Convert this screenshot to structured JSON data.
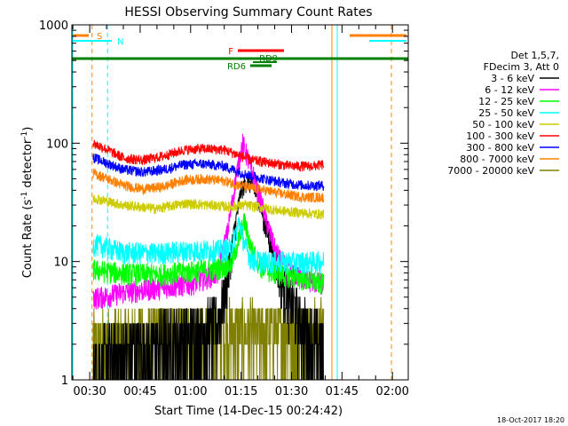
{
  "chart_data": {
    "type": "line",
    "title": "HESSI Observing Summary Count Rates",
    "xlabel": "Start Time (14-Dec-15 00:24:42)",
    "ylabel_main": "Count Rate (s",
    "ylabel_sup1": "-1",
    "ylabel_mid": " detector",
    "ylabel_sup2": "-1",
    "ylabel_end": ")",
    "y_scale": "log",
    "ylim": [
      1,
      1000
    ],
    "xlim_minutes": [
      24.7,
      124.7
    ],
    "x_ticks": [
      {
        "m": 30,
        "label": "00:30"
      },
      {
        "m": 45,
        "label": "00:45"
      },
      {
        "m": 60,
        "label": "01:00"
      },
      {
        "m": 75,
        "label": "01:15"
      },
      {
        "m": 90,
        "label": "01:30"
      },
      {
        "m": 105,
        "label": "01:45"
      },
      {
        "m": 120,
        "label": "02:00"
      }
    ],
    "y_ticks": [
      {
        "v": 1,
        "label": "1"
      },
      {
        "v": 10,
        "label": "10"
      },
      {
        "v": 100,
        "label": "100"
      },
      {
        "v": 1000,
        "label": "1000"
      }
    ],
    "legend_header": [
      "Det 1,5,7,",
      "FDecim 3, Att 0"
    ],
    "series": [
      {
        "name": "3 - 6 keV",
        "color": "#000000",
        "points": [
          [
            31,
            1.2
          ],
          [
            40,
            1.6
          ],
          [
            50,
            2.0
          ],
          [
            60,
            2.4
          ],
          [
            68,
            3.0
          ],
          [
            71,
            7
          ],
          [
            73,
            18
          ],
          [
            75,
            40
          ],
          [
            77,
            48
          ],
          [
            79,
            40
          ],
          [
            81,
            28
          ],
          [
            83,
            17
          ],
          [
            85,
            11
          ],
          [
            87,
            7
          ],
          [
            89,
            5
          ],
          [
            92,
            3.5
          ],
          [
            96,
            2.2
          ],
          [
            99.5,
            1.8
          ]
        ]
      },
      {
        "name": "6 - 12 keV",
        "color": "#ff00ff",
        "points": [
          [
            33,
            5
          ],
          [
            40,
            5.5
          ],
          [
            50,
            6
          ],
          [
            60,
            6.5
          ],
          [
            68,
            8
          ],
          [
            71,
            18
          ],
          [
            73,
            42
          ],
          [
            74.5,
            75
          ],
          [
            75.5,
            100
          ],
          [
            77,
            75
          ],
          [
            79,
            50
          ],
          [
            81,
            32
          ],
          [
            83,
            20
          ],
          [
            85,
            13
          ],
          [
            87,
            10
          ],
          [
            90,
            8
          ],
          [
            95,
            7
          ],
          [
            99.5,
            6.5
          ]
        ]
      },
      {
        "name": "12 - 25 keV",
        "color": "#00ff00",
        "points": [
          [
            32,
            8.5
          ],
          [
            40,
            8.0
          ],
          [
            50,
            7.8
          ],
          [
            60,
            8.3
          ],
          [
            68,
            8.8
          ],
          [
            72,
            9.5
          ],
          [
            74.5,
            16
          ],
          [
            76,
            22
          ],
          [
            78,
            13
          ],
          [
            81,
            9
          ],
          [
            85,
            8
          ],
          [
            90,
            7.5
          ],
          [
            95,
            7
          ],
          [
            99.5,
            6.5
          ]
        ]
      },
      {
        "name": "25 - 50 keV",
        "color": "#00ffff",
        "points": [
          [
            32,
            14
          ],
          [
            40,
            12
          ],
          [
            50,
            11.8
          ],
          [
            60,
            12.5
          ],
          [
            68,
            12.5
          ],
          [
            72,
            13
          ],
          [
            74.5,
            22
          ],
          [
            76,
            14
          ],
          [
            78,
            10.5
          ],
          [
            82,
            10
          ],
          [
            88,
            10
          ],
          [
            95,
            10
          ],
          [
            99.5,
            10
          ]
        ]
      },
      {
        "name": "50 - 100 keV",
        "color": "#cccc00",
        "points": [
          [
            32,
            34
          ],
          [
            40,
            30
          ],
          [
            50,
            28
          ],
          [
            58,
            31
          ],
          [
            66,
            30
          ],
          [
            72,
            29
          ],
          [
            76,
            30
          ],
          [
            80,
            29
          ],
          [
            86,
            27
          ],
          [
            92,
            26
          ],
          [
            99.5,
            25
          ]
        ]
      },
      {
        "name": "100 - 300 keV",
        "color": "#ff0000",
        "points": [
          [
            31,
            100
          ],
          [
            34,
            92
          ],
          [
            40,
            75
          ],
          [
            46,
            72
          ],
          [
            52,
            78
          ],
          [
            58,
            88
          ],
          [
            64,
            90
          ],
          [
            70,
            88
          ],
          [
            74,
            80
          ],
          [
            78,
            72
          ],
          [
            84,
            68
          ],
          [
            90,
            64
          ],
          [
            96,
            64
          ],
          [
            99.5,
            66
          ]
        ]
      },
      {
        "name": "300 - 800 keV",
        "color": "#0000ff",
        "points": [
          [
            31,
            76
          ],
          [
            34,
            70
          ],
          [
            40,
            60
          ],
          [
            46,
            57
          ],
          [
            52,
            60
          ],
          [
            58,
            66
          ],
          [
            64,
            67
          ],
          [
            70,
            64
          ],
          [
            76,
            55
          ],
          [
            82,
            50
          ],
          [
            88,
            46
          ],
          [
            94,
            44
          ],
          [
            99.5,
            44
          ]
        ]
      },
      {
        "name": "800 - 7000 keV",
        "color": "#ff8000",
        "points": [
          [
            31,
            56
          ],
          [
            34,
            52
          ],
          [
            40,
            44
          ],
          [
            46,
            41
          ],
          [
            52,
            43
          ],
          [
            58,
            49
          ],
          [
            64,
            50
          ],
          [
            70,
            48
          ],
          [
            76,
            43
          ],
          [
            82,
            40
          ],
          [
            88,
            37
          ],
          [
            94,
            35
          ],
          [
            99.5,
            35
          ]
        ]
      },
      {
        "name": "7000 - 20000 keV",
        "color": "#808000",
        "points": [
          [
            31,
            2.0
          ],
          [
            40,
            2.2
          ],
          [
            50,
            2.5
          ],
          [
            60,
            2.4
          ],
          [
            70,
            2.7
          ],
          [
            80,
            2.6
          ],
          [
            90,
            2.7
          ],
          [
            99.5,
            2.7
          ]
        ]
      }
    ],
    "flags": [
      {
        "label": "S",
        "color": "#ff8000"
      },
      {
        "label": "N",
        "color": "#00ffff"
      },
      {
        "label": "F",
        "color": "#ff0000"
      },
      {
        "label": "RD9",
        "color": "#008000"
      },
      {
        "label": "RD6",
        "color": "#008000"
      }
    ],
    "timestamp": "18-Oct-2017 18:20"
  }
}
